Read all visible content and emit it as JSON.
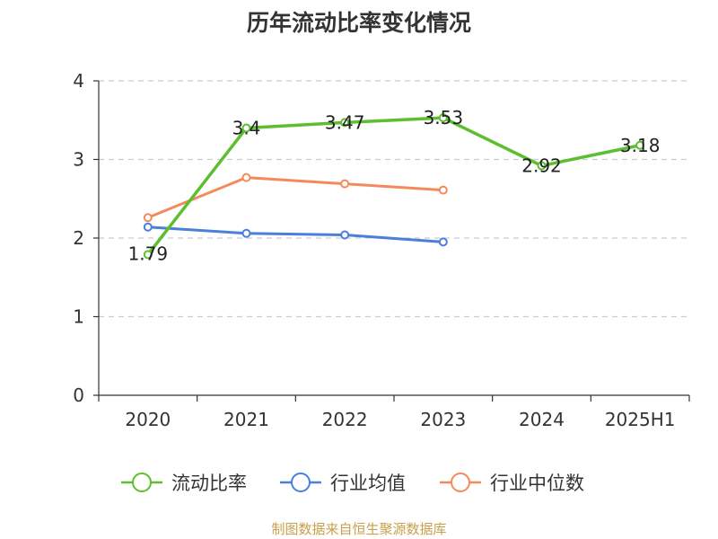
{
  "title": "历年流动比率变化情况",
  "source_note": "制图数据来自恒生聚源数据库",
  "chart_data": {
    "type": "line",
    "title": "历年流动比率变化情况",
    "xlabel": "",
    "ylabel": "",
    "categories": [
      "2020",
      "2021",
      "2022",
      "2023",
      "2024",
      "2025H1"
    ],
    "ylim": [
      0,
      4
    ],
    "yticks": [
      0,
      1,
      2,
      3,
      4
    ],
    "grid": true,
    "legend_position": "bottom",
    "series": [
      {
        "name": "流动比率",
        "color": "#5dbf2f",
        "values": [
          1.79,
          3.4,
          3.47,
          3.53,
          2.92,
          3.18
        ],
        "data_labels": [
          "1.79",
          "3.4",
          "3.47",
          "3.53",
          "2.92",
          "3.18"
        ]
      },
      {
        "name": "行业均值",
        "color": "#4a7fdb",
        "values": [
          2.14,
          2.06,
          2.04,
          1.95,
          null,
          null
        ]
      },
      {
        "name": "行业中位数",
        "color": "#f48a5c",
        "values": [
          2.26,
          2.77,
          2.69,
          2.61,
          null,
          null
        ]
      }
    ]
  }
}
